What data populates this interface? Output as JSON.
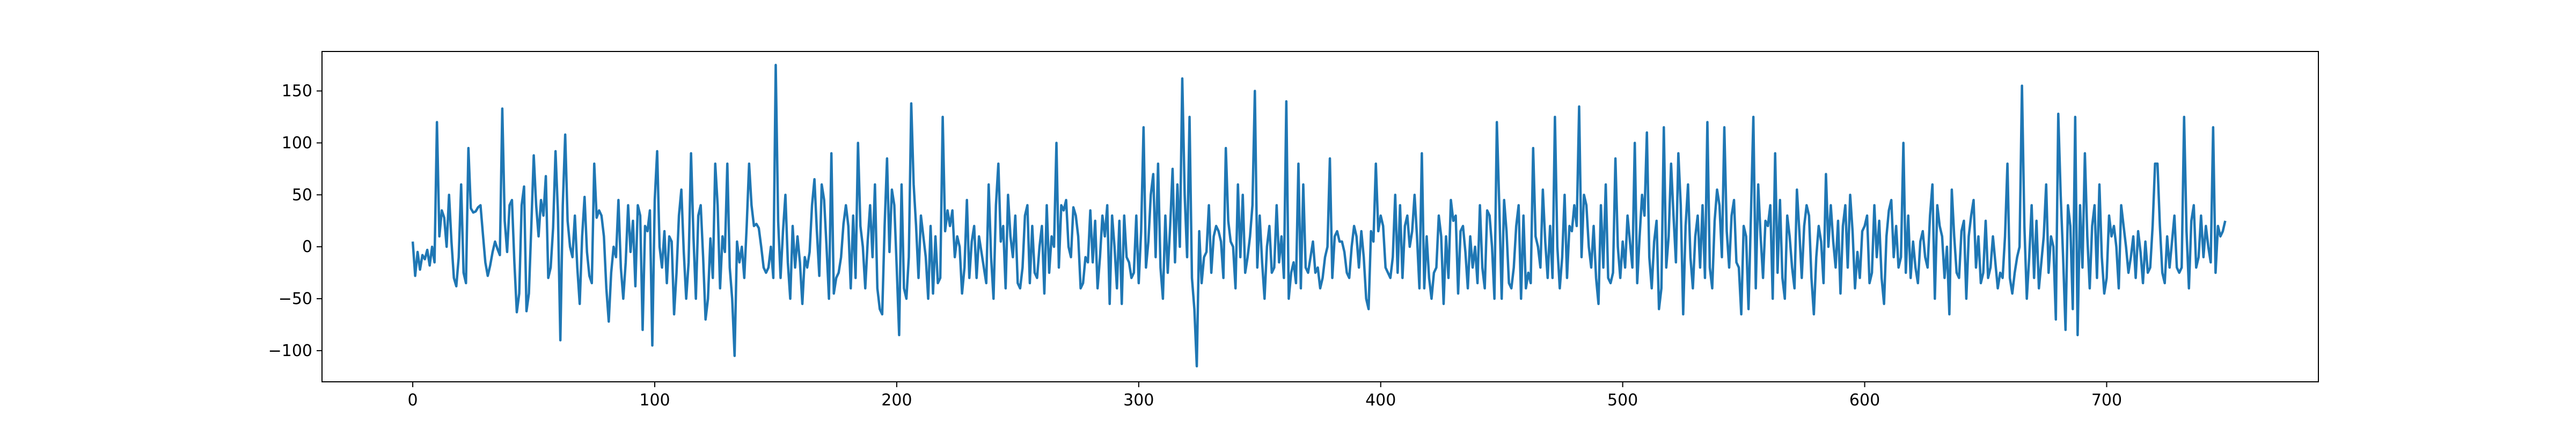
{
  "chart_data": {
    "type": "line",
    "title": "",
    "xlabel": "",
    "ylabel": "",
    "xlim": [
      -37.5,
      787.5
    ],
    "ylim": [
      -130,
      188
    ],
    "grid": false,
    "legend": "none",
    "xticks": [
      0,
      100,
      200,
      300,
      400,
      500,
      600,
      700
    ],
    "yticks": [
      -100,
      -50,
      0,
      50,
      100,
      150
    ],
    "series": [
      {
        "color": "#1f77b4",
        "x_start": 0,
        "x_step": 1,
        "values": [
          5,
          -28,
          -5,
          -22,
          -8,
          -12,
          -3,
          -18,
          0,
          -15,
          120,
          10,
          35,
          28,
          0,
          50,
          5,
          -30,
          -38,
          -10,
          60,
          -25,
          -35,
          95,
          37,
          33,
          34,
          38,
          40,
          12,
          -15,
          -28,
          -18,
          -5,
          5,
          -2,
          -8,
          133,
          25,
          -5,
          40,
          45,
          -15,
          -63,
          -45,
          40,
          58,
          -62,
          -45,
          20,
          88,
          40,
          10,
          45,
          30,
          68,
          -30,
          -20,
          18,
          92,
          33,
          -90,
          40,
          108,
          25,
          0,
          -10,
          30,
          -20,
          -55,
          10,
          48,
          -5,
          -28,
          -35,
          80,
          28,
          35,
          30,
          10,
          -40,
          -72,
          -25,
          0,
          -10,
          45,
          -20,
          -50,
          -15,
          40,
          -5,
          25,
          -38,
          40,
          30,
          -80,
          20,
          15,
          35,
          -95,
          45,
          92,
          0,
          -20,
          15,
          -35,
          10,
          5,
          -65,
          -25,
          30,
          55,
          -5,
          -50,
          -15,
          90,
          10,
          -50,
          30,
          40,
          -10,
          -70,
          -50,
          8,
          -30,
          80,
          40,
          -40,
          10,
          -5,
          80,
          -20,
          -50,
          -105,
          5,
          -15,
          0,
          -30,
          20,
          80,
          40,
          20,
          22,
          18,
          0,
          -20,
          -25,
          -20,
          0,
          -30,
          175,
          25,
          -30,
          15,
          50,
          -15,
          -50,
          20,
          -20,
          10,
          -15,
          -55,
          -10,
          -20,
          -5,
          40,
          65,
          15,
          -28,
          60,
          45,
          0,
          -50,
          90,
          -45,
          -30,
          -25,
          -10,
          22,
          40,
          20,
          -40,
          30,
          -30,
          100,
          20,
          0,
          -40,
          5,
          40,
          -10,
          60,
          -40,
          -60,
          -65,
          20,
          85,
          -5,
          55,
          40,
          -20,
          -85,
          60,
          -40,
          -50,
          -10,
          138,
          60,
          20,
          -30,
          30,
          10,
          -10,
          -50,
          20,
          -45,
          10,
          -35,
          -30,
          125,
          15,
          35,
          20,
          35,
          -10,
          10,
          0,
          -45,
          -20,
          45,
          -30,
          5,
          20,
          -30,
          10,
          -5,
          -20,
          -35,
          60,
          -10,
          -50,
          40,
          80,
          5,
          20,
          -40,
          50,
          10,
          -10,
          30,
          -35,
          -40,
          -20,
          30,
          40,
          -35,
          20,
          -25,
          -30,
          0,
          20,
          -45,
          40,
          -25,
          10,
          0,
          100,
          -20,
          40,
          35,
          45,
          0,
          -10,
          38,
          30,
          10,
          -40,
          -35,
          -10,
          -15,
          35,
          -15,
          25,
          -40,
          -10,
          30,
          10,
          40,
          -55,
          30,
          0,
          -40,
          25,
          -55,
          30,
          -10,
          -15,
          -30,
          -25,
          30,
          -35,
          15,
          115,
          -20,
          5,
          50,
          70,
          -10,
          80,
          -20,
          -50,
          30,
          -25,
          20,
          75,
          -15,
          60,
          0,
          162,
          50,
          -10,
          125,
          -30,
          -60,
          -115,
          15,
          -35,
          -10,
          -5,
          40,
          -25,
          10,
          20,
          15,
          5,
          -30,
          95,
          25,
          5,
          0,
          -40,
          60,
          -10,
          50,
          -25,
          -10,
          10,
          40,
          150,
          -20,
          30,
          -15,
          -50,
          0,
          20,
          -25,
          -20,
          40,
          -15,
          10,
          -30,
          140,
          -50,
          -25,
          -15,
          -35,
          80,
          -40,
          60,
          -20,
          -25,
          -10,
          5,
          -25,
          -20,
          -40,
          -30,
          -10,
          0,
          85,
          -30,
          10,
          15,
          5,
          5,
          -5,
          -25,
          -30,
          0,
          20,
          10,
          -20,
          15,
          -10,
          -50,
          -60,
          15,
          5,
          80,
          15,
          30,
          20,
          -20,
          -25,
          -30,
          -10,
          50,
          -25,
          40,
          -30,
          20,
          30,
          0,
          15,
          50,
          10,
          -40,
          90,
          -40,
          10,
          -30,
          -50,
          -25,
          -20,
          30,
          10,
          -55,
          10,
          -30,
          45,
          25,
          30,
          -45,
          15,
          20,
          -5,
          -40,
          10,
          -20,
          0,
          -35,
          40,
          -20,
          -40,
          35,
          30,
          0,
          -50,
          120,
          40,
          -50,
          45,
          15,
          -35,
          -40,
          -20,
          20,
          40,
          -50,
          30,
          -40,
          -25,
          -35,
          95,
          10,
          0,
          -20,
          55,
          5,
          -30,
          20,
          -30,
          125,
          0,
          -40,
          -10,
          50,
          -30,
          20,
          15,
          40,
          20,
          135,
          -10,
          50,
          40,
          0,
          -20,
          20,
          -30,
          -55,
          40,
          -20,
          60,
          -30,
          -35,
          -25,
          85,
          0,
          -30,
          5,
          -20,
          30,
          5,
          -20,
          100,
          -35,
          10,
          50,
          30,
          110,
          -10,
          -40,
          5,
          25,
          -60,
          -40,
          115,
          -20,
          10,
          80,
          30,
          -15,
          90,
          40,
          -65,
          20,
          60,
          -10,
          -40,
          10,
          30,
          -20,
          40,
          -30,
          120,
          -20,
          -40,
          25,
          55,
          40,
          -10,
          115,
          15,
          -20,
          30,
          45,
          -15,
          -20,
          -65,
          20,
          10,
          -60,
          30,
          125,
          -40,
          60,
          10,
          -30,
          25,
          20,
          40,
          -50,
          90,
          -25,
          45,
          -30,
          -50,
          30,
          10,
          -20,
          -40,
          55,
          15,
          -30,
          20,
          40,
          30,
          -30,
          -65,
          -10,
          20,
          5,
          -35,
          70,
          0,
          40,
          5,
          -20,
          25,
          -45,
          20,
          40,
          -20,
          50,
          15,
          -40,
          -5,
          -30,
          15,
          20,
          30,
          -35,
          -25,
          40,
          -10,
          25,
          -30,
          -55,
          10,
          35,
          45,
          -10,
          20,
          -20,
          -10,
          100,
          -25,
          30,
          -30,
          5,
          -20,
          -35,
          5,
          15,
          -10,
          -20,
          30,
          60,
          -50,
          40,
          20,
          10,
          -30,
          0,
          -65,
          55,
          10,
          -25,
          -30,
          15,
          25,
          -50,
          10,
          30,
          45,
          -20,
          10,
          -35,
          -25,
          25,
          -30,
          -20,
          10,
          -15,
          -40,
          -25,
          -30,
          10,
          80,
          -30,
          -45,
          -25,
          -10,
          0,
          155,
          20,
          -50,
          -10,
          40,
          -30,
          25,
          -40,
          -15,
          10,
          60,
          -25,
          10,
          0,
          -70,
          128,
          50,
          -10,
          -80,
          40,
          20,
          -60,
          125,
          -85,
          40,
          -20,
          90,
          10,
          -40,
          20,
          40,
          -30,
          60,
          -10,
          -45,
          -30,
          30,
          10,
          20,
          0,
          -40,
          40,
          20,
          0,
          -25,
          -10,
          10,
          -30,
          15,
          -5,
          -35,
          5,
          -25,
          -20,
          20,
          80,
          80,
          20,
          -25,
          -35,
          10,
          -20,
          5,
          30,
          -20,
          -25,
          -20,
          125,
          15,
          -40,
          25,
          40,
          -20,
          -10,
          30,
          -10,
          20,
          0,
          -15,
          115,
          -25,
          20,
          10,
          15,
          25
        ]
      }
    ]
  }
}
